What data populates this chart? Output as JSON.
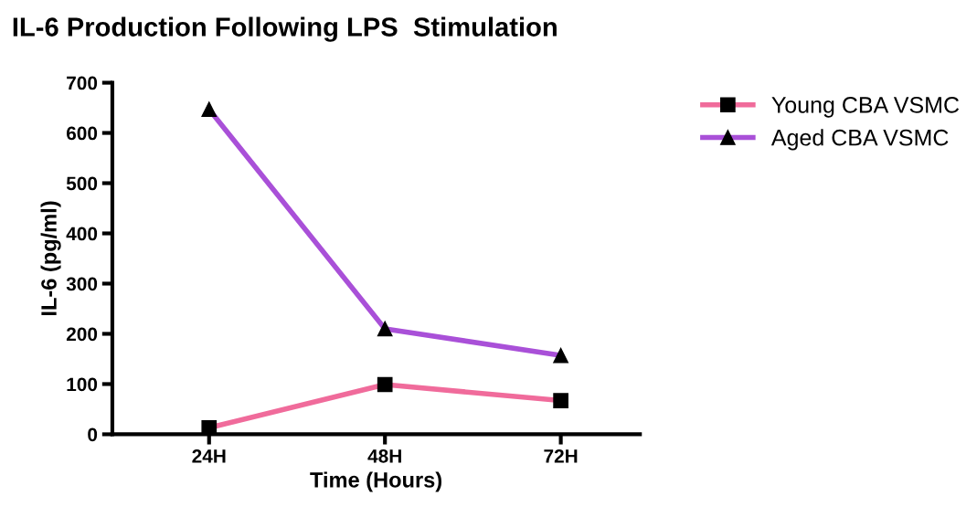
{
  "chart_data": {
    "type": "line",
    "title": "IL-6 Production Following LPS  Stimulation",
    "xlabel": "Time (Hours)",
    "ylabel": "IL-6 (pg/ml)",
    "categories": [
      "24H",
      "48H",
      "72H"
    ],
    "series": [
      {
        "name": "Young CBA VSMC",
        "color": "#f06b9b",
        "values": [
          13,
          99,
          67
        ],
        "marker": "square"
      },
      {
        "name": "Aged CBA VSMC",
        "color": "#a950d8",
        "values": [
          647,
          210,
          157
        ],
        "marker": "triangle"
      }
    ],
    "ylim": [
      0,
      700
    ],
    "yticks": [
      0,
      100,
      200,
      300,
      400,
      500,
      600,
      700
    ],
    "grid": false,
    "legend": "right",
    "line_style": "solid"
  }
}
